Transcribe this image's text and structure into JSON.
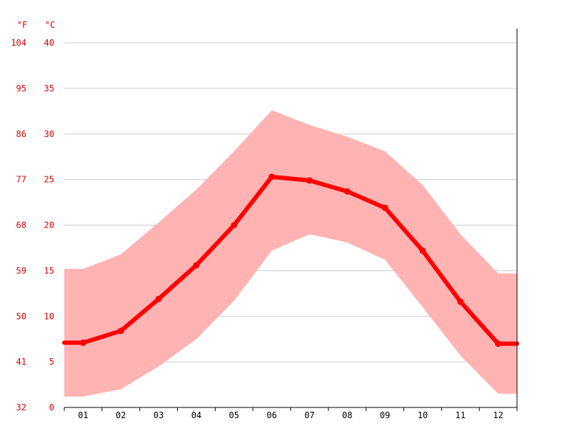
{
  "chart_data": {
    "type": "line",
    "title": "",
    "xlabel": "",
    "ylabel": "",
    "units": {
      "fahrenheit": "°F",
      "celsius": "°C"
    },
    "categories": [
      "01",
      "02",
      "03",
      "04",
      "05",
      "06",
      "07",
      "08",
      "09",
      "10",
      "11",
      "12"
    ],
    "ylim": [
      0,
      40
    ],
    "y_ticks_celsius": [
      "40",
      "35",
      "30",
      "25",
      "20",
      "15",
      "10",
      "5",
      "0"
    ],
    "y_ticks_fahrenheit": [
      "104",
      "95",
      "86",
      "77",
      "68",
      "59",
      "50",
      "41",
      "32"
    ],
    "grid": true,
    "series": [
      {
        "role": "mean",
        "values": [
          7.1,
          8.4,
          11.9,
          15.6,
          20.0,
          25.3,
          24.9,
          23.7,
          21.9,
          17.2,
          11.6,
          7.0
        ]
      },
      {
        "role": "range-max",
        "values": [
          15.2,
          16.8,
          20.3,
          23.9,
          28.1,
          32.6,
          31.0,
          29.7,
          28.1,
          24.4,
          19.0,
          14.7
        ]
      },
      {
        "role": "range-min",
        "values": [
          1.2,
          2.0,
          4.5,
          7.5,
          11.7,
          17.2,
          19.0,
          18.1,
          16.2,
          11.0,
          5.7,
          1.5
        ]
      }
    ],
    "colors": {
      "mean": "#ff0000",
      "range": "#ffb3b3",
      "axis_text": "#e00000",
      "grid": "#cccccc"
    }
  }
}
